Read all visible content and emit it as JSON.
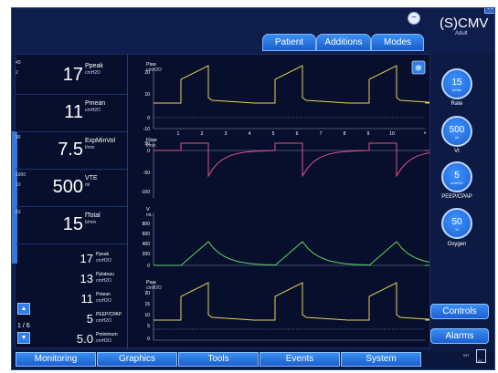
{
  "header": {
    "mode": "(S)CMV",
    "mode_sub": "Adult",
    "tabs": [
      "Patient",
      "Additions",
      "Modes"
    ]
  },
  "left_params": [
    {
      "name": "Ppeak",
      "unit": "cmH2O",
      "value": "17",
      "alarm_hi": "40",
      "alarm_lo": "2"
    },
    {
      "name": "Pmean",
      "unit": "cmH2O",
      "value": "11",
      "alarm_hi": "",
      "alarm_lo": ""
    },
    {
      "name": "ExpMinVol",
      "unit": "l/min",
      "value": "7.5",
      "alarm_hi": "",
      "alarm_lo": "36"
    },
    {
      "name": "VTE",
      "unit": "ml",
      "value": "500",
      "alarm_hi": "1900",
      "alarm_lo": "10"
    },
    {
      "name": "fTotal",
      "unit": "b/min",
      "value": "15",
      "alarm_hi": "",
      "alarm_lo": "53"
    }
  ],
  "mini_params": [
    {
      "name": "Ppeak",
      "unit": "cmH2O",
      "value": "17"
    },
    {
      "name": "Pplateau",
      "unit": "cmH2O",
      "value": "13"
    },
    {
      "name": "Pmean",
      "unit": "cmH2O",
      "value": "11"
    },
    {
      "name": "PEEP/CPAP",
      "unit": "cmH2O",
      "value": "5"
    },
    {
      "name": "Pminimum",
      "unit": "cmH2O",
      "value": "5.0"
    }
  ],
  "page": "1 / 6",
  "charts": {
    "paw1": {
      "label": "Paw",
      "unit": "cmH2O",
      "yticks": [
        "20",
        "10",
        "0",
        "-10"
      ],
      "xticks": [
        "1",
        "2",
        "3",
        "4",
        "5",
        "6",
        "7",
        "8",
        "9",
        "10"
      ],
      "xunit": "s"
    },
    "flow": {
      "label": "Flow",
      "unit": "l/min",
      "yticks": [
        "50",
        "0",
        "-50",
        "-100"
      ]
    },
    "vol": {
      "label": "V",
      "unit": "mL",
      "yticks": [
        "800",
        "600",
        "400",
        "200",
        "0"
      ]
    },
    "paw2": {
      "label": "Paw",
      "unit": "cmH2O",
      "yticks": [
        "20",
        "15",
        "10",
        "5",
        "0"
      ]
    }
  },
  "controls": [
    {
      "value": "15",
      "unit": "b/min",
      "label": "Rate"
    },
    {
      "value": "500",
      "unit": "ml",
      "label": "Vt"
    },
    {
      "value": "5",
      "unit": "cmH2O",
      "label": "PEEP/CPAP"
    },
    {
      "value": "50",
      "unit": "%",
      "label": "Oxygen"
    }
  ],
  "side_buttons": {
    "controls": "Controls",
    "alarms": "Alarms"
  },
  "bottom_tabs": [
    "Monitoring",
    "Graphics",
    "Tools",
    "Events",
    "System"
  ],
  "indicators": {
    "int": "INT",
    "ac": "AC"
  },
  "colors": {
    "pressure": "#e8d25a",
    "flow": "#e0508c",
    "volume": "#5fd35f",
    "accent": "#1a5fd0"
  }
}
